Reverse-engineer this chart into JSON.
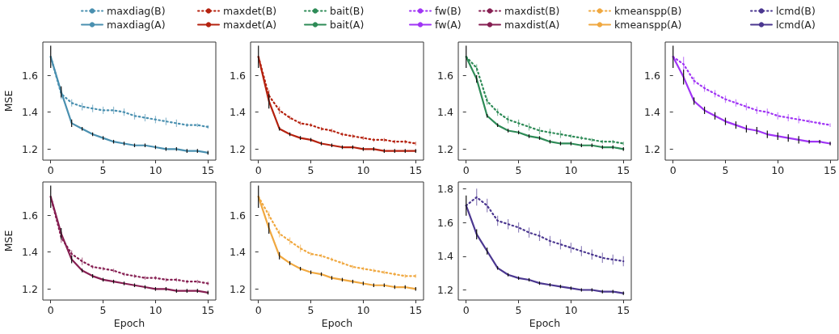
{
  "chart_data": [
    {
      "type": "line",
      "ylabel": "MSE",
      "x": [
        0,
        1,
        2,
        3,
        4,
        5,
        6,
        7,
        8,
        9,
        10,
        11,
        12,
        13,
        14,
        15
      ],
      "xlim": [
        -0.75,
        15.75
      ],
      "xticks": [
        0,
        5,
        10,
        15
      ],
      "ylim": [
        1.14,
        1.78
      ],
      "yticks": [
        1.2,
        1.4,
        1.6
      ],
      "legend": "top",
      "series": [
        {
          "name": "maxdiag(B)",
          "color": "#4a90b0",
          "line_style": "dotted",
          "values": [
            1.7,
            1.5,
            1.45,
            1.43,
            1.42,
            1.41,
            1.41,
            1.4,
            1.38,
            1.37,
            1.36,
            1.35,
            1.34,
            1.33,
            1.33,
            1.32
          ],
          "errors": [
            null,
            0.03,
            0.02,
            0.02,
            0.02,
            0.02,
            0.02,
            0.02,
            0.02,
            0.02,
            0.02,
            0.02,
            0.02,
            0.01,
            0.01,
            0.01
          ]
        },
        {
          "name": "maxdiag(A)",
          "color": "#4a90b0",
          "line_style": "solid",
          "values": [
            1.7,
            1.51,
            1.34,
            1.31,
            1.28,
            1.26,
            1.24,
            1.23,
            1.22,
            1.22,
            1.21,
            1.2,
            1.2,
            1.19,
            1.19,
            1.18
          ],
          "errors": [
            0.06,
            0.03,
            0.02,
            0.01,
            0.01,
            0.01,
            0.01,
            0.01,
            0.01,
            0.01,
            0.01,
            0.01,
            0.01,
            0.01,
            0.01,
            0.01
          ]
        }
      ]
    },
    {
      "type": "line",
      "x": [
        0,
        1,
        2,
        3,
        4,
        5,
        6,
        7,
        8,
        9,
        10,
        11,
        12,
        13,
        14,
        15
      ],
      "xlim": [
        -0.75,
        15.75
      ],
      "xticks": [
        0,
        5,
        10,
        15
      ],
      "ylim": [
        1.14,
        1.78
      ],
      "yticks": [
        1.2,
        1.4,
        1.6
      ],
      "legend": "top",
      "series": [
        {
          "name": "maxdet(B)",
          "color": "#b5220f",
          "line_style": "dotted",
          "values": [
            1.7,
            1.49,
            1.41,
            1.37,
            1.34,
            1.33,
            1.31,
            1.3,
            1.28,
            1.27,
            1.26,
            1.25,
            1.25,
            1.24,
            1.24,
            1.23
          ],
          "errors": [
            null,
            0.03,
            0.02,
            0.01,
            0.01,
            0.01,
            0.01,
            0.01,
            0.01,
            0.01,
            0.01,
            0.01,
            0.01,
            0.01,
            0.01,
            0.01
          ]
        },
        {
          "name": "maxdet(A)",
          "color": "#b5220f",
          "line_style": "solid",
          "values": [
            1.7,
            1.46,
            1.31,
            1.28,
            1.26,
            1.25,
            1.23,
            1.22,
            1.21,
            1.21,
            1.2,
            1.2,
            1.19,
            1.19,
            1.19,
            1.19
          ],
          "errors": [
            0.06,
            0.04,
            0.01,
            0.01,
            0.01,
            0.01,
            0.01,
            0.01,
            0.01,
            0.01,
            0.01,
            0.01,
            0.01,
            0.01,
            0.01,
            0.01
          ]
        }
      ]
    },
    {
      "type": "line",
      "x": [
        0,
        1,
        2,
        3,
        4,
        5,
        6,
        7,
        8,
        9,
        10,
        11,
        12,
        13,
        14,
        15
      ],
      "xlim": [
        -0.75,
        15.75
      ],
      "xticks": [
        0,
        5,
        10,
        15
      ],
      "ylim": [
        1.14,
        1.78
      ],
      "yticks": [
        1.2,
        1.4,
        1.6
      ],
      "legend": "top",
      "series": [
        {
          "name": "bait(B)",
          "color": "#2e8b57",
          "line_style": "dotted",
          "values": [
            1.7,
            1.64,
            1.46,
            1.4,
            1.36,
            1.34,
            1.32,
            1.3,
            1.29,
            1.28,
            1.27,
            1.26,
            1.25,
            1.24,
            1.24,
            1.23
          ],
          "errors": [
            null,
            0.02,
            0.02,
            0.02,
            0.02,
            0.02,
            0.02,
            0.02,
            0.02,
            0.02,
            0.01,
            0.01,
            0.01,
            0.01,
            0.01,
            0.01
          ]
        },
        {
          "name": "bait(A)",
          "color": "#2e8b57",
          "line_style": "solid",
          "values": [
            1.7,
            1.58,
            1.38,
            1.33,
            1.3,
            1.29,
            1.27,
            1.26,
            1.24,
            1.23,
            1.23,
            1.22,
            1.22,
            1.21,
            1.21,
            1.2
          ],
          "errors": [
            0.06,
            0.02,
            0.01,
            0.01,
            0.01,
            0.01,
            0.01,
            0.01,
            0.01,
            0.01,
            0.01,
            0.01,
            0.01,
            0.01,
            0.01,
            0.01
          ]
        }
      ]
    },
    {
      "type": "line",
      "x": [
        0,
        1,
        2,
        3,
        4,
        5,
        6,
        7,
        8,
        9,
        10,
        11,
        12,
        13,
        14,
        15
      ],
      "xlim": [
        -0.75,
        15.75
      ],
      "xticks": [
        0,
        5,
        10,
        15
      ],
      "ylim": [
        1.14,
        1.78
      ],
      "yticks": [
        1.2,
        1.4,
        1.6
      ],
      "legend": "top",
      "series": [
        {
          "name": "fw(B)",
          "color": "#a035f5",
          "line_style": "dotted",
          "values": [
            1.7,
            1.66,
            1.57,
            1.53,
            1.5,
            1.47,
            1.45,
            1.43,
            1.41,
            1.4,
            1.38,
            1.37,
            1.36,
            1.35,
            1.34,
            1.33
          ],
          "errors": [
            null,
            0.04,
            0.02,
            0.02,
            0.02,
            0.02,
            0.02,
            0.02,
            0.02,
            0.02,
            0.02,
            0.02,
            0.02,
            0.01,
            0.01,
            0.01
          ]
        },
        {
          "name": "fw(A)",
          "color": "#a035f5",
          "line_style": "solid",
          "values": [
            1.7,
            1.59,
            1.46,
            1.41,
            1.38,
            1.35,
            1.33,
            1.31,
            1.3,
            1.28,
            1.27,
            1.26,
            1.25,
            1.24,
            1.24,
            1.23
          ],
          "errors": [
            0.06,
            0.04,
            0.02,
            0.02,
            0.02,
            0.02,
            0.02,
            0.02,
            0.02,
            0.02,
            0.02,
            0.02,
            0.02,
            0.01,
            0.01,
            0.01
          ]
        }
      ]
    },
    {
      "type": "line",
      "xlabel": "Epoch",
      "ylabel": "MSE",
      "x": [
        0,
        1,
        2,
        3,
        4,
        5,
        6,
        7,
        8,
        9,
        10,
        11,
        12,
        13,
        14,
        15
      ],
      "xlim": [
        -0.75,
        15.75
      ],
      "xticks": [
        0,
        5,
        10,
        15
      ],
      "ylim": [
        1.14,
        1.78
      ],
      "yticks": [
        1.2,
        1.4,
        1.6
      ],
      "legend": "top",
      "series": [
        {
          "name": "maxdist(B)",
          "color": "#861f52",
          "line_style": "dotted",
          "values": [
            1.7,
            1.48,
            1.39,
            1.35,
            1.32,
            1.31,
            1.3,
            1.28,
            1.27,
            1.26,
            1.26,
            1.25,
            1.25,
            1.24,
            1.24,
            1.23
          ],
          "errors": [
            null,
            0.03,
            0.02,
            0.02,
            0.01,
            0.01,
            0.01,
            0.01,
            0.01,
            0.01,
            0.01,
            0.01,
            0.01,
            0.01,
            0.01,
            0.01
          ]
        },
        {
          "name": "maxdist(A)",
          "color": "#861f52",
          "line_style": "solid",
          "values": [
            1.7,
            1.5,
            1.36,
            1.3,
            1.27,
            1.25,
            1.24,
            1.23,
            1.22,
            1.21,
            1.2,
            1.2,
            1.19,
            1.19,
            1.19,
            1.18
          ],
          "errors": [
            0.06,
            0.03,
            0.02,
            0.01,
            0.01,
            0.01,
            0.01,
            0.01,
            0.01,
            0.01,
            0.01,
            0.01,
            0.01,
            0.01,
            0.01,
            0.01
          ]
        }
      ]
    },
    {
      "type": "line",
      "xlabel": "Epoch",
      "x": [
        0,
        1,
        2,
        3,
        4,
        5,
        6,
        7,
        8,
        9,
        10,
        11,
        12,
        13,
        14,
        15
      ],
      "xlim": [
        -0.75,
        15.75
      ],
      "xticks": [
        0,
        5,
        10,
        15
      ],
      "ylim": [
        1.14,
        1.78
      ],
      "yticks": [
        1.2,
        1.4,
        1.6
      ],
      "legend": "top",
      "series": [
        {
          "name": "kmeanspp(B)",
          "color": "#f0a840",
          "line_style": "dotted",
          "values": [
            1.7,
            1.6,
            1.5,
            1.46,
            1.42,
            1.39,
            1.38,
            1.36,
            1.34,
            1.32,
            1.31,
            1.3,
            1.29,
            1.28,
            1.27,
            1.27
          ],
          "errors": [
            null,
            0.02,
            0.02,
            0.02,
            0.02,
            0.01,
            0.01,
            0.01,
            0.01,
            0.01,
            0.01,
            0.01,
            0.01,
            0.01,
            0.01,
            0.01
          ]
        },
        {
          "name": "kmeanspp(A)",
          "color": "#f0a840",
          "line_style": "solid",
          "values": [
            1.7,
            1.53,
            1.38,
            1.34,
            1.31,
            1.29,
            1.28,
            1.26,
            1.25,
            1.24,
            1.23,
            1.22,
            1.22,
            1.21,
            1.21,
            1.2
          ],
          "errors": [
            0.06,
            0.03,
            0.02,
            0.01,
            0.01,
            0.01,
            0.01,
            0.01,
            0.01,
            0.01,
            0.01,
            0.01,
            0.01,
            0.01,
            0.01,
            0.01
          ]
        }
      ]
    },
    {
      "type": "line",
      "xlabel": "Epoch",
      "x": [
        0,
        1,
        2,
        3,
        4,
        5,
        6,
        7,
        8,
        9,
        10,
        11,
        12,
        13,
        14,
        15
      ],
      "xlim": [
        -0.75,
        15.75
      ],
      "xticks": [
        0,
        5,
        10,
        15
      ],
      "ylim": [
        1.14,
        1.84
      ],
      "yticks": [
        1.2,
        1.4,
        1.6,
        1.8
      ],
      "legend": "top",
      "series": [
        {
          "name": "lcmd(B)",
          "color": "#4b3790",
          "line_style": "dotted",
          "values": [
            1.7,
            1.75,
            1.7,
            1.61,
            1.59,
            1.57,
            1.54,
            1.52,
            1.49,
            1.47,
            1.45,
            1.43,
            1.41,
            1.39,
            1.38,
            1.37
          ],
          "errors": [
            null,
            0.05,
            0.04,
            0.03,
            0.03,
            0.03,
            0.03,
            0.03,
            0.03,
            0.03,
            0.03,
            0.03,
            0.03,
            0.03,
            0.03,
            0.03
          ]
        },
        {
          "name": "lcmd(A)",
          "color": "#4b3790",
          "line_style": "solid",
          "values": [
            1.7,
            1.53,
            1.43,
            1.33,
            1.29,
            1.27,
            1.26,
            1.24,
            1.23,
            1.22,
            1.21,
            1.2,
            1.2,
            1.19,
            1.19,
            1.18
          ],
          "errors": [
            0.06,
            0.03,
            0.02,
            0.01,
            0.01,
            0.01,
            0.01,
            0.01,
            0.01,
            0.01,
            0.01,
            0.01,
            0.01,
            0.01,
            0.01,
            0.01
          ]
        }
      ]
    }
  ]
}
